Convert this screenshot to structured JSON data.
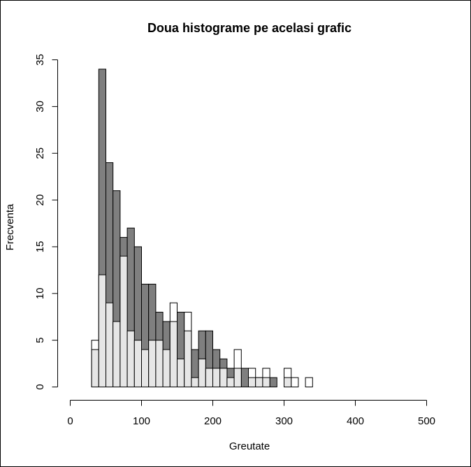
{
  "chart_data": {
    "type": "bar",
    "title": "Doua histograme pe acelasi grafic",
    "xlabel": "Greutate",
    "ylabel": "Frecventa",
    "xlim": [
      0,
      500
    ],
    "ylim": [
      0,
      35
    ],
    "xticks": [
      0,
      100,
      200,
      300,
      400,
      500
    ],
    "yticks": [
      0,
      5,
      10,
      15,
      20,
      25,
      30,
      35
    ],
    "bin_width": 10,
    "grid": false,
    "colors": {
      "dark": "#7f7f7f",
      "light": "#e6e6e6",
      "white": "#ffffff",
      "stroke": "#000000"
    },
    "series": [
      {
        "fill": "dark",
        "bins": [
          {
            "x0": 40,
            "x1": 50,
            "y": 34
          },
          {
            "x0": 50,
            "x1": 60,
            "y": 24
          },
          {
            "x0": 60,
            "x1": 70,
            "y": 21
          },
          {
            "x0": 70,
            "x1": 80,
            "y": 16
          },
          {
            "x0": 80,
            "x1": 90,
            "y": 17
          },
          {
            "x0": 90,
            "x1": 100,
            "y": 15
          },
          {
            "x0": 100,
            "x1": 110,
            "y": 11
          },
          {
            "x0": 110,
            "x1": 120,
            "y": 11
          },
          {
            "x0": 120,
            "x1": 130,
            "y": 8
          },
          {
            "x0": 130,
            "x1": 140,
            "y": 7
          },
          {
            "x0": 140,
            "x1": 150,
            "y": 7
          },
          {
            "x0": 150,
            "x1": 160,
            "y": 8
          },
          {
            "x0": 170,
            "x1": 180,
            "y": 4
          },
          {
            "x0": 180,
            "x1": 190,
            "y": 6
          },
          {
            "x0": 190,
            "x1": 200,
            "y": 6
          },
          {
            "x0": 200,
            "x1": 210,
            "y": 4
          },
          {
            "x0": 210,
            "x1": 220,
            "y": 3
          },
          {
            "x0": 220,
            "x1": 230,
            "y": 2
          },
          {
            "x0": 240,
            "x1": 250,
            "y": 2
          },
          {
            "x0": 260,
            "x1": 270,
            "y": 1
          },
          {
            "x0": 280,
            "x1": 290,
            "y": 1
          }
        ]
      },
      {
        "fill": "white",
        "bins": [
          {
            "x0": 30,
            "x1": 40,
            "y": 5
          },
          {
            "x0": 140,
            "x1": 150,
            "y": 9
          },
          {
            "x0": 160,
            "x1": 170,
            "y": 8
          },
          {
            "x0": 230,
            "x1": 240,
            "y": 4
          },
          {
            "x0": 250,
            "x1": 260,
            "y": 2
          },
          {
            "x0": 270,
            "x1": 280,
            "y": 2
          },
          {
            "x0": 300,
            "x1": 310,
            "y": 2
          },
          {
            "x0": 310,
            "x1": 320,
            "y": 1
          },
          {
            "x0": 330,
            "x1": 340,
            "y": 1
          }
        ]
      },
      {
        "fill": "light",
        "bins": [
          {
            "x0": 30,
            "x1": 40,
            "y": 4
          },
          {
            "x0": 40,
            "x1": 50,
            "y": 12
          },
          {
            "x0": 50,
            "x1": 60,
            "y": 9
          },
          {
            "x0": 60,
            "x1": 70,
            "y": 7
          },
          {
            "x0": 70,
            "x1": 80,
            "y": 14
          },
          {
            "x0": 80,
            "x1": 90,
            "y": 6
          },
          {
            "x0": 90,
            "x1": 100,
            "y": 5
          },
          {
            "x0": 100,
            "x1": 110,
            "y": 4
          },
          {
            "x0": 110,
            "x1": 120,
            "y": 5
          },
          {
            "x0": 120,
            "x1": 130,
            "y": 5
          },
          {
            "x0": 130,
            "x1": 140,
            "y": 4
          },
          {
            "x0": 140,
            "x1": 150,
            "y": 7
          },
          {
            "x0": 150,
            "x1": 160,
            "y": 3
          },
          {
            "x0": 160,
            "x1": 170,
            "y": 6
          },
          {
            "x0": 170,
            "x1": 180,
            "y": 1
          },
          {
            "x0": 180,
            "x1": 190,
            "y": 3
          },
          {
            "x0": 190,
            "x1": 200,
            "y": 2
          },
          {
            "x0": 200,
            "x1": 210,
            "y": 2
          },
          {
            "x0": 210,
            "x1": 220,
            "y": 2
          },
          {
            "x0": 220,
            "x1": 230,
            "y": 1
          },
          {
            "x0": 230,
            "x1": 240,
            "y": 2
          },
          {
            "x0": 250,
            "x1": 260,
            "y": 1
          },
          {
            "x0": 260,
            "x1": 270,
            "y": 1
          },
          {
            "x0": 270,
            "x1": 280,
            "y": 1
          },
          {
            "x0": 300,
            "x1": 310,
            "y": 1
          }
        ]
      }
    ]
  }
}
